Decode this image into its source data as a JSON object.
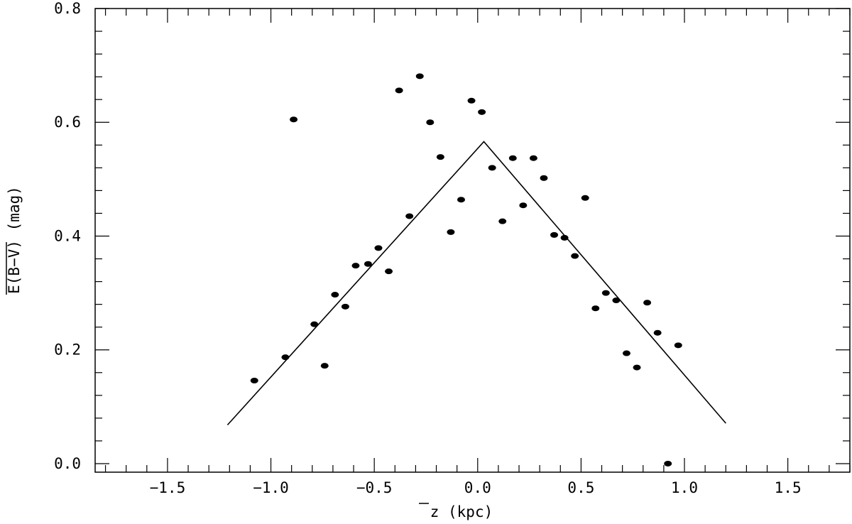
{
  "chart_data": {
    "type": "scatter",
    "title": "",
    "xlabel": "z (kpc)",
    "ylabel": "E(B−V) (mag)",
    "xlim": [
      -1.85,
      1.8
    ],
    "ylim": [
      -0.015,
      0.8
    ],
    "x_ticks": [
      -1.5,
      -1.0,
      -0.5,
      0.0,
      0.5,
      1.0,
      1.5
    ],
    "x_tick_labels": [
      "−1.5",
      "−1.0",
      "−0.5",
      "0.0",
      "0.5",
      "1.0",
      "1.5"
    ],
    "y_ticks": [
      0.0,
      0.2,
      0.4,
      0.6,
      0.8
    ],
    "y_tick_labels": [
      "0.0",
      "0.2",
      "0.4",
      "0.6",
      "0.8"
    ],
    "grid": false,
    "legend": "none",
    "series": [
      {
        "type": "scatter",
        "points": [
          [
            -1.08,
            0.146
          ],
          [
            -0.93,
            0.187
          ],
          [
            -0.89,
            0.605
          ],
          [
            -0.79,
            0.245
          ],
          [
            -0.74,
            0.172
          ],
          [
            -0.69,
            0.297
          ],
          [
            -0.64,
            0.276
          ],
          [
            -0.59,
            0.348
          ],
          [
            -0.53,
            0.351
          ],
          [
            -0.48,
            0.379
          ],
          [
            -0.43,
            0.338
          ],
          [
            -0.38,
            0.656
          ],
          [
            -0.33,
            0.435
          ],
          [
            -0.28,
            0.681
          ],
          [
            -0.23,
            0.6
          ],
          [
            -0.18,
            0.539
          ],
          [
            -0.13,
            0.407
          ],
          [
            -0.08,
            0.464
          ],
          [
            -0.03,
            0.638
          ],
          [
            0.02,
            0.618
          ],
          [
            0.07,
            0.52
          ],
          [
            0.12,
            0.426
          ],
          [
            0.17,
            0.537
          ],
          [
            0.22,
            0.454
          ],
          [
            0.27,
            0.537
          ],
          [
            0.32,
            0.502
          ],
          [
            0.37,
            0.402
          ],
          [
            0.42,
            0.397
          ],
          [
            0.47,
            0.365
          ],
          [
            0.52,
            0.467
          ],
          [
            0.57,
            0.273
          ],
          [
            0.62,
            0.3
          ],
          [
            0.67,
            0.287
          ],
          [
            0.72,
            0.194
          ],
          [
            0.77,
            0.169
          ],
          [
            0.82,
            0.283
          ],
          [
            0.87,
            0.23
          ],
          [
            0.92,
            0.0
          ],
          [
            0.97,
            0.208
          ]
        ]
      },
      {
        "type": "line",
        "points": [
          [
            -1.21,
            0.068
          ],
          [
            0.03,
            0.566
          ],
          [
            1.2,
            0.071
          ]
        ]
      }
    ]
  }
}
